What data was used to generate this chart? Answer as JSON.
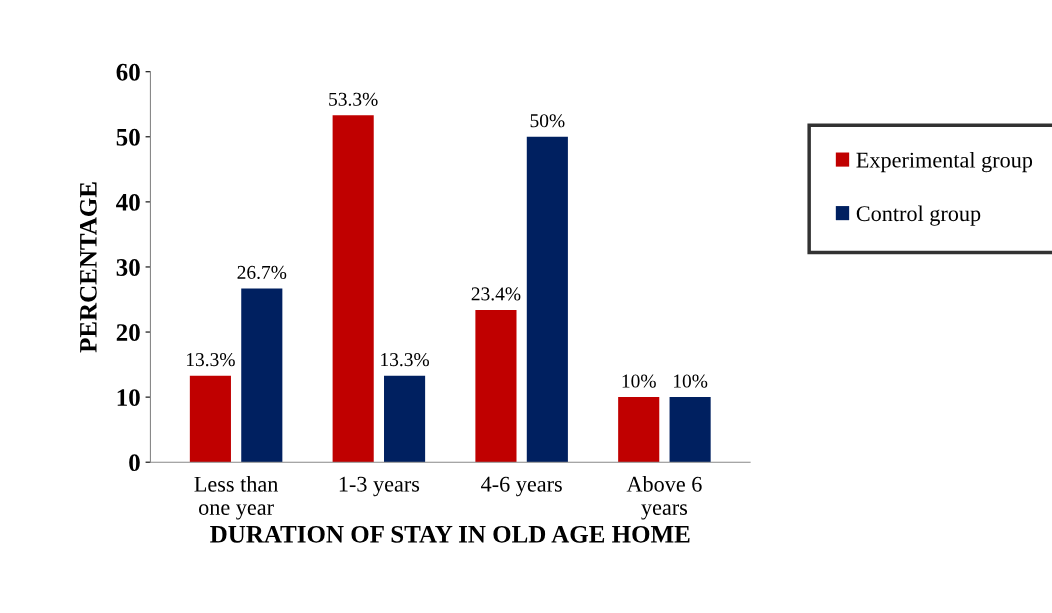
{
  "chart_data": {
    "type": "bar",
    "xlabel": "DURATION OF STAY IN OLD AGE HOME",
    "ylabel": "PERCENTAGE",
    "categories": [
      "Less than\none year",
      "1-3 years",
      "4-6 years",
      "Above 6\nyears"
    ],
    "series": [
      {
        "name": "Experimental group",
        "color": "#c00000",
        "values": [
          13.3,
          53.3,
          23.4,
          10
        ],
        "value_labels": [
          "13.3%",
          "53.3%",
          "23.4%",
          "10%"
        ]
      },
      {
        "name": "Control group",
        "color": "#002060",
        "values": [
          26.7,
          13.3,
          50,
          10
        ],
        "value_labels": [
          "26.7%",
          "13.3%",
          "50%",
          "10%"
        ]
      }
    ],
    "ylim": [
      0,
      60
    ],
    "yticks": [
      0,
      10,
      20,
      30,
      40,
      50,
      60
    ],
    "grid": false,
    "legend": "right"
  }
}
